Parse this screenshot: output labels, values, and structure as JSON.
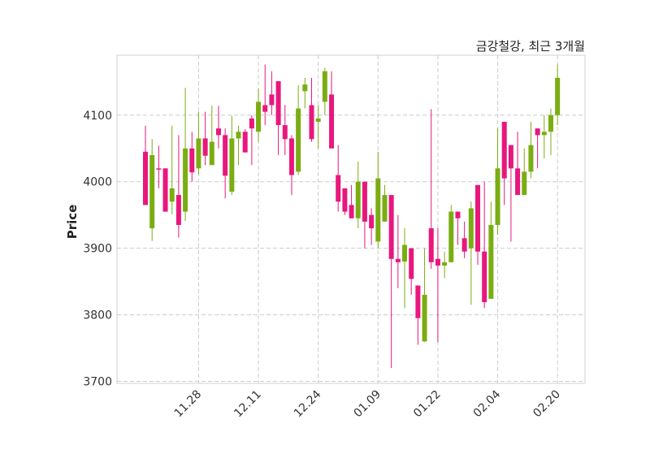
{
  "chart_data": {
    "type": "candlestick",
    "title": "금강철강, 최근 3개월",
    "xlabel": "",
    "ylabel": "Price",
    "ylim": [
      3697,
      4190
    ],
    "yticks": [
      3700,
      3800,
      3900,
      4000,
      4100
    ],
    "xticks": [
      {
        "index": 8,
        "label": "11.28"
      },
      {
        "index": 17,
        "label": "12.11"
      },
      {
        "index": 26,
        "label": "12.24"
      },
      {
        "index": 35,
        "label": "01.09"
      },
      {
        "index": 44,
        "label": "01.22"
      },
      {
        "index": 53,
        "label": "02.04"
      },
      {
        "index": 62,
        "label": "02.20"
      }
    ],
    "grid": true,
    "colors": {
      "up": "#7aad12",
      "down": "#e8177d",
      "grid": "#cccccc"
    },
    "ohlc": [
      [
        4045,
        4084,
        3965,
        3965
      ],
      [
        3930,
        4064,
        3911,
        4040
      ],
      [
        4020,
        4054,
        3990,
        4019
      ],
      [
        4020,
        4020,
        3955,
        3955
      ],
      [
        3970,
        4084,
        3951,
        3990
      ],
      [
        3980,
        4070,
        3916,
        3935
      ],
      [
        3955,
        4141,
        3941,
        4050
      ],
      [
        4050,
        4075,
        4000,
        4014
      ],
      [
        4020,
        4105,
        4011,
        4065
      ],
      [
        4065,
        4105,
        4025,
        4039
      ],
      [
        4025,
        4114,
        4025,
        4060
      ],
      [
        4080,
        4114,
        4050,
        4070
      ],
      [
        4070,
        4080,
        3975,
        4009
      ],
      [
        3985,
        4099,
        3980,
        4065
      ],
      [
        4065,
        4084,
        4025,
        4075
      ],
      [
        4075,
        4079,
        4044,
        4044
      ],
      [
        4095,
        4100,
        4025,
        4080
      ],
      [
        4075,
        4140,
        4060,
        4120
      ],
      [
        4115,
        4176,
        4085,
        4105
      ],
      [
        4131,
        4166,
        4100,
        4115
      ],
      [
        4151,
        4151,
        4040,
        4085
      ],
      [
        4085,
        4115,
        4040,
        4064
      ],
      [
        4065,
        4070,
        3980,
        4010
      ],
      [
        4015,
        4145,
        4010,
        4110
      ],
      [
        4136,
        4156,
        4110,
        4146
      ],
      [
        4115,
        4156,
        4060,
        4064
      ],
      [
        4090,
        4115,
        4050,
        4095
      ],
      [
        4120,
        4171,
        4100,
        4166
      ],
      [
        4131,
        4166,
        4050,
        4050
      ],
      [
        4010,
        4055,
        3955,
        3970
      ],
      [
        3990,
        3990,
        3950,
        3955
      ],
      [
        3965,
        3995,
        3945,
        3945
      ],
      [
        3945,
        4030,
        3930,
        4000
      ],
      [
        4000,
        4000,
        3900,
        3940
      ],
      [
        3950,
        3960,
        3905,
        3930
      ],
      [
        3910,
        4045,
        3900,
        4005
      ],
      [
        3940,
        3995,
        3940,
        3980
      ],
      [
        3980,
        3980,
        3720,
        3884
      ],
      [
        3884,
        3950,
        3840,
        3879
      ],
      [
        3880,
        3930,
        3810,
        3905
      ],
      [
        3900,
        3900,
        3830,
        3854
      ],
      [
        3844,
        3844,
        3755,
        3795
      ],
      [
        3760,
        3900,
        3759,
        3830
      ],
      [
        3930,
        4109,
        3869,
        3879
      ],
      [
        3884,
        3930,
        3759,
        3874
      ],
      [
        3874,
        3895,
        3855,
        3879
      ],
      [
        3879,
        3965,
        3879,
        3955
      ],
      [
        3955,
        3955,
        3905,
        3945
      ],
      [
        3915,
        3940,
        3885,
        3895
      ],
      [
        3900,
        3970,
        3815,
        3960
      ],
      [
        3995,
        3995,
        3875,
        3895
      ],
      [
        3895,
        4000,
        3810,
        3819
      ],
      [
        3824,
        3970,
        3824,
        3935
      ],
      [
        3935,
        4080,
        3920,
        4020
      ],
      [
        4090,
        4090,
        3965,
        4005
      ],
      [
        4055,
        4055,
        3910,
        4020
      ],
      [
        4020,
        4075,
        3980,
        3980
      ],
      [
        3980,
        4050,
        3980,
        4015
      ],
      [
        4015,
        4090,
        4005,
        4055
      ],
      [
        4080,
        4080,
        4020,
        4070
      ],
      [
        4070,
        4100,
        4035,
        4075
      ],
      [
        4075,
        4110,
        4040,
        4100
      ],
      [
        4100,
        4176,
        4085,
        4156
      ]
    ]
  }
}
